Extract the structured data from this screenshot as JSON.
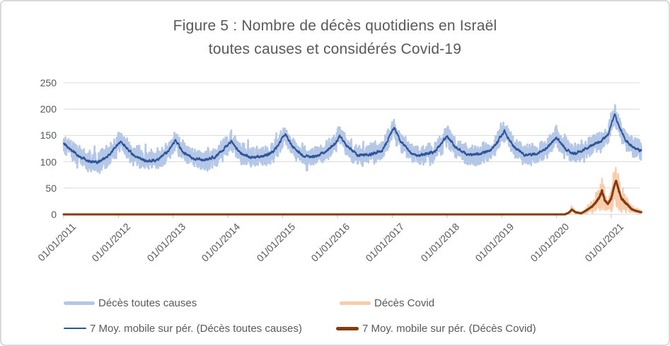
{
  "title": {
    "line1": "Figure 5 : Nombre de décès quotidiens en Israël",
    "line2": "toutes causes et considérés Covid-19"
  },
  "chart_data": {
    "type": "line",
    "title": "Figure 5 : Nombre de décès quotidiens en Israël toutes causes et considérés Covid-19",
    "ylabel": "",
    "xlabel": "",
    "ylim": [
      0,
      250
    ],
    "y_ticks": [
      0,
      50,
      100,
      150,
      200,
      250
    ],
    "x_tick_labels": [
      "01/01/2011",
      "01/01/2012",
      "01/01/2013",
      "01/01/2014",
      "01/01/2015",
      "01/01/2016",
      "01/01/2017",
      "01/01/2018",
      "01/01/2019",
      "01/01/2020",
      "01/01/2021"
    ],
    "x_range_years": [
      0,
      10.55
    ],
    "grid": "horizontal-only",
    "legend_position": "bottom",
    "colors": {
      "grid": "#d9d9d9",
      "axis_tick": "#bfbfbf",
      "text": "#595959"
    },
    "series": [
      {
        "name": "Décès toutes causes",
        "color": "#b4c7e7",
        "kind": "daily",
        "stroke": 2.6,
        "note": "noisy daily values, roughly moving-average ±20-35; winter band tops ~150-190; max spike ~225 in Jan 2021; summer band lows ~65-75"
      },
      {
        "name": "Décès Covid",
        "color": "#f8cbad",
        "kind": "daily",
        "stroke": 2.4,
        "note": "zero before March 2020; daily spikes up to ~100 around late Jan 2021"
      },
      {
        "name": "7 Moy. mobile sur pér. (Décès toutes causes)",
        "color": "#2f5597",
        "kind": "moving-average",
        "stroke": 1.9
      },
      {
        "name": "7 Moy. mobile sur pér. (Décès Covid)",
        "color": "#843c0c",
        "kind": "moving-average",
        "stroke": 3
      }
    ],
    "all_causes_ma_points": [
      [
        0.0,
        134
      ],
      [
        0.1,
        126
      ],
      [
        0.25,
        112
      ],
      [
        0.45,
        101
      ],
      [
        0.62,
        100
      ],
      [
        0.8,
        110
      ],
      [
        0.92,
        124
      ],
      [
        1.04,
        140
      ],
      [
        1.12,
        130
      ],
      [
        1.3,
        110
      ],
      [
        1.5,
        101
      ],
      [
        1.7,
        104
      ],
      [
        1.88,
        117
      ],
      [
        2.04,
        141
      ],
      [
        2.18,
        119
      ],
      [
        2.38,
        105
      ],
      [
        2.58,
        103
      ],
      [
        2.78,
        109
      ],
      [
        2.96,
        128
      ],
      [
        3.06,
        139
      ],
      [
        3.22,
        117
      ],
      [
        3.42,
        108
      ],
      [
        3.62,
        110
      ],
      [
        3.82,
        117
      ],
      [
        4.05,
        153
      ],
      [
        4.18,
        129
      ],
      [
        4.38,
        111
      ],
      [
        4.58,
        110
      ],
      [
        4.78,
        117
      ],
      [
        4.96,
        136
      ],
      [
        5.04,
        149
      ],
      [
        5.18,
        128
      ],
      [
        5.38,
        112
      ],
      [
        5.6,
        114
      ],
      [
        5.82,
        121
      ],
      [
        6.03,
        165
      ],
      [
        6.16,
        138
      ],
      [
        6.36,
        114
      ],
      [
        6.56,
        113
      ],
      [
        6.78,
        119
      ],
      [
        7.0,
        149
      ],
      [
        7.16,
        127
      ],
      [
        7.38,
        113
      ],
      [
        7.58,
        114
      ],
      [
        7.82,
        123
      ],
      [
        8.05,
        158
      ],
      [
        8.2,
        131
      ],
      [
        8.42,
        113
      ],
      [
        8.62,
        115
      ],
      [
        8.82,
        125
      ],
      [
        9.0,
        147
      ],
      [
        9.15,
        125
      ],
      [
        9.32,
        115
      ],
      [
        9.52,
        124
      ],
      [
        9.68,
        133
      ],
      [
        9.82,
        139
      ],
      [
        9.95,
        154
      ],
      [
        10.06,
        190
      ],
      [
        10.14,
        168
      ],
      [
        10.26,
        141
      ],
      [
        10.4,
        128
      ],
      [
        10.55,
        121
      ]
    ],
    "covid_ma_points": [
      [
        0,
        0
      ],
      [
        9.15,
        0
      ],
      [
        9.22,
        3
      ],
      [
        9.28,
        9
      ],
      [
        9.35,
        4
      ],
      [
        9.45,
        2
      ],
      [
        9.55,
        8
      ],
      [
        9.65,
        15
      ],
      [
        9.72,
        23
      ],
      [
        9.78,
        32
      ],
      [
        9.83,
        45
      ],
      [
        9.88,
        27
      ],
      [
        9.94,
        20
      ],
      [
        10.0,
        31
      ],
      [
        10.05,
        52
      ],
      [
        10.09,
        65
      ],
      [
        10.13,
        48
      ],
      [
        10.19,
        30
      ],
      [
        10.25,
        23
      ],
      [
        10.31,
        17
      ],
      [
        10.37,
        10
      ],
      [
        10.44,
        7
      ],
      [
        10.55,
        4
      ]
    ],
    "daily_noise_halfwidth": 24,
    "covid_daily_noise_factor": 0.5
  }
}
